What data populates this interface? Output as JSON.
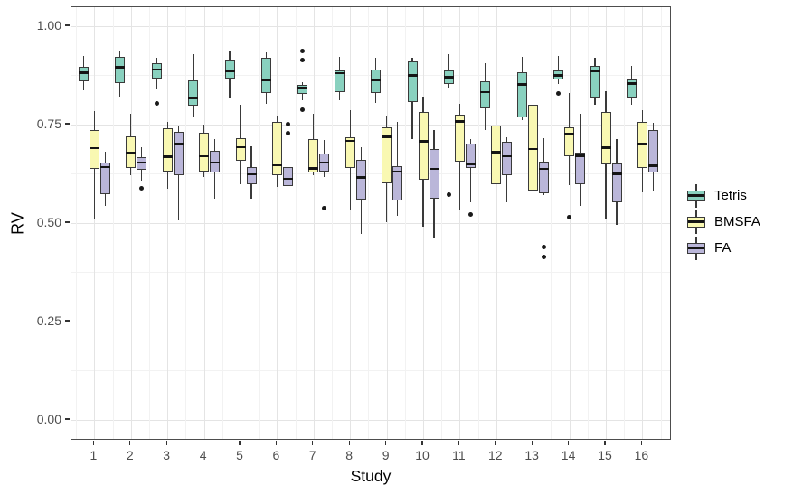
{
  "chart_data": {
    "type": "boxplot",
    "title": "",
    "xlabel": "Study",
    "ylabel": "RV",
    "categories": [
      "1",
      "2",
      "3",
      "4",
      "5",
      "6",
      "7",
      "8",
      "9",
      "10",
      "11",
      "12",
      "13",
      "14",
      "15",
      "16"
    ],
    "y_ticks": [
      "0.00",
      "0.25",
      "0.50",
      "0.75",
      "1.00"
    ],
    "y_tick_values": [
      0.0,
      0.25,
      0.5,
      0.75,
      1.0
    ],
    "ylim": [
      -0.02,
      1.03
    ],
    "grid": "major-and-minor",
    "legend_position": "right",
    "style": {
      "box_border": "#3A3A3A",
      "median_color": "#151515",
      "outlier_color": "#1A1A1A",
      "panel_border": "#4D4D4D",
      "grid_major": "#E4E4E4",
      "grid_minor": "#F2F2F2",
      "tick_text": "#4D4D4D"
    },
    "series": [
      {
        "name": "Tetris",
        "color": "#89D1BF",
        "boxes": [
          {
            "lo": 0.838,
            "q1": 0.859,
            "med": 0.882,
            "q3": 0.897,
            "hi": 0.924,
            "outliers": []
          },
          {
            "lo": 0.821,
            "q1": 0.856,
            "med": 0.896,
            "q3": 0.923,
            "hi": 0.938,
            "outliers": []
          },
          {
            "lo": 0.839,
            "q1": 0.867,
            "med": 0.89,
            "q3": 0.905,
            "hi": 0.919,
            "outliers": [
              0.804
            ]
          },
          {
            "lo": 0.768,
            "q1": 0.798,
            "med": 0.818,
            "q3": 0.862,
            "hi": 0.928,
            "outliers": []
          },
          {
            "lo": 0.816,
            "q1": 0.867,
            "med": 0.885,
            "q3": 0.915,
            "hi": 0.936,
            "outliers": []
          },
          {
            "lo": 0.803,
            "q1": 0.831,
            "med": 0.864,
            "q3": 0.919,
            "hi": 0.933,
            "outliers": []
          },
          {
            "lo": 0.812,
            "q1": 0.829,
            "med": 0.843,
            "q3": 0.852,
            "hi": 0.858,
            "outliers": [
              0.938,
              0.913,
              0.787
            ]
          },
          {
            "lo": 0.812,
            "q1": 0.833,
            "med": 0.881,
            "q3": 0.888,
            "hi": 0.923,
            "outliers": []
          },
          {
            "lo": 0.806,
            "q1": 0.831,
            "med": 0.862,
            "q3": 0.89,
            "hi": 0.919,
            "outliers": []
          },
          {
            "lo": 0.714,
            "q1": 0.808,
            "med": 0.875,
            "q3": 0.91,
            "hi": 0.919,
            "outliers": []
          },
          {
            "lo": 0.843,
            "q1": 0.854,
            "med": 0.87,
            "q3": 0.888,
            "hi": 0.928,
            "outliers": [
              0.573
            ]
          },
          {
            "lo": 0.736,
            "q1": 0.791,
            "med": 0.833,
            "q3": 0.859,
            "hi": 0.907,
            "outliers": []
          },
          {
            "lo": 0.762,
            "q1": 0.768,
            "med": 0.852,
            "q3": 0.882,
            "hi": 0.923,
            "outliers": []
          },
          {
            "lo": 0.854,
            "q1": 0.864,
            "med": 0.875,
            "q3": 0.888,
            "hi": 0.925,
            "outliers": [
              0.829
            ]
          },
          {
            "lo": 0.8,
            "q1": 0.818,
            "med": 0.887,
            "q3": 0.9,
            "hi": 0.919,
            "outliers": []
          },
          {
            "lo": 0.8,
            "q1": 0.818,
            "med": 0.855,
            "q3": 0.864,
            "hi": 0.898,
            "outliers": []
          }
        ]
      },
      {
        "name": "BMSFA",
        "color": "#F9F8B2",
        "boxes": [
          {
            "lo": 0.51,
            "q1": 0.638,
            "med": 0.69,
            "q3": 0.737,
            "hi": 0.785,
            "outliers": []
          },
          {
            "lo": 0.621,
            "q1": 0.64,
            "med": 0.678,
            "q3": 0.72,
            "hi": 0.778,
            "outliers": []
          },
          {
            "lo": 0.588,
            "q1": 0.63,
            "med": 0.668,
            "q3": 0.74,
            "hi": 0.757,
            "outliers": []
          },
          {
            "lo": 0.618,
            "q1": 0.63,
            "med": 0.67,
            "q3": 0.729,
            "hi": 0.749,
            "outliers": []
          },
          {
            "lo": 0.598,
            "q1": 0.659,
            "med": 0.693,
            "q3": 0.716,
            "hi": 0.8,
            "outliers": []
          },
          {
            "lo": 0.592,
            "q1": 0.621,
            "med": 0.647,
            "q3": 0.757,
            "hi": 0.774,
            "outliers": []
          },
          {
            "lo": 0.621,
            "q1": 0.628,
            "med": 0.639,
            "q3": 0.713,
            "hi": 0.777,
            "outliers": []
          },
          {
            "lo": 0.533,
            "q1": 0.64,
            "med": 0.709,
            "q3": 0.719,
            "hi": 0.787,
            "outliers": []
          },
          {
            "lo": 0.502,
            "q1": 0.602,
            "med": 0.719,
            "q3": 0.743,
            "hi": 0.772,
            "outliers": []
          },
          {
            "lo": 0.491,
            "q1": 0.609,
            "med": 0.708,
            "q3": 0.783,
            "hi": 0.821,
            "outliers": []
          },
          {
            "lo": 0.531,
            "q1": 0.655,
            "med": 0.758,
            "q3": 0.775,
            "hi": 0.803,
            "outliers": []
          },
          {
            "lo": 0.553,
            "q1": 0.598,
            "med": 0.68,
            "q3": 0.747,
            "hi": 0.806,
            "outliers": []
          },
          {
            "lo": 0.541,
            "q1": 0.583,
            "med": 0.688,
            "q3": 0.8,
            "hi": 0.829,
            "outliers": []
          },
          {
            "lo": 0.596,
            "q1": 0.67,
            "med": 0.726,
            "q3": 0.742,
            "hi": 0.831,
            "outliers": [
              0.515
            ]
          },
          {
            "lo": 0.51,
            "q1": 0.648,
            "med": 0.691,
            "q3": 0.781,
            "hi": 0.836,
            "outliers": []
          },
          {
            "lo": 0.579,
            "q1": 0.64,
            "med": 0.701,
            "q3": 0.758,
            "hi": 0.787,
            "outliers": []
          }
        ]
      },
      {
        "name": "FA",
        "color": "#BAB6D9",
        "boxes": [
          {
            "lo": 0.543,
            "q1": 0.573,
            "med": 0.642,
            "q3": 0.653,
            "hi": 0.682,
            "outliers": []
          },
          {
            "lo": 0.607,
            "q1": 0.636,
            "med": 0.654,
            "q3": 0.668,
            "hi": 0.693,
            "outliers": [
              0.588
            ]
          },
          {
            "lo": 0.508,
            "q1": 0.622,
            "med": 0.701,
            "q3": 0.732,
            "hi": 0.747,
            "outliers": []
          },
          {
            "lo": 0.561,
            "q1": 0.628,
            "med": 0.654,
            "q3": 0.683,
            "hi": 0.714,
            "outliers": []
          },
          {
            "lo": 0.561,
            "q1": 0.598,
            "med": 0.624,
            "q3": 0.642,
            "hi": 0.696,
            "outliers": []
          },
          {
            "lo": 0.56,
            "q1": 0.594,
            "med": 0.612,
            "q3": 0.642,
            "hi": 0.653,
            "outliers": [
              0.752,
              0.729
            ]
          },
          {
            "lo": 0.617,
            "q1": 0.63,
            "med": 0.654,
            "q3": 0.676,
            "hi": 0.711,
            "outliers": [
              0.538
            ]
          },
          {
            "lo": 0.472,
            "q1": 0.56,
            "med": 0.616,
            "q3": 0.661,
            "hi": 0.693,
            "outliers": []
          },
          {
            "lo": 0.518,
            "q1": 0.558,
            "med": 0.631,
            "q3": 0.645,
            "hi": 0.758,
            "outliers": []
          },
          {
            "lo": 0.46,
            "q1": 0.561,
            "med": 0.638,
            "q3": 0.688,
            "hi": 0.737,
            "outliers": []
          },
          {
            "lo": 0.552,
            "q1": 0.64,
            "med": 0.65,
            "q3": 0.701,
            "hi": 0.714,
            "outliers": [
              0.521
            ]
          },
          {
            "lo": 0.553,
            "q1": 0.621,
            "med": 0.67,
            "q3": 0.706,
            "hi": 0.719,
            "outliers": []
          },
          {
            "lo": 0.57,
            "q1": 0.576,
            "med": 0.638,
            "q3": 0.655,
            "hi": 0.716,
            "outliers": [
              0.439,
              0.413
            ]
          },
          {
            "lo": 0.543,
            "q1": 0.599,
            "med": 0.671,
            "q3": 0.68,
            "hi": 0.777,
            "outliers": []
          },
          {
            "lo": 0.495,
            "q1": 0.552,
            "med": 0.625,
            "q3": 0.651,
            "hi": 0.714,
            "outliers": []
          },
          {
            "lo": 0.583,
            "q1": 0.628,
            "med": 0.645,
            "q3": 0.736,
            "hi": 0.755,
            "outliers": []
          }
        ]
      }
    ]
  }
}
